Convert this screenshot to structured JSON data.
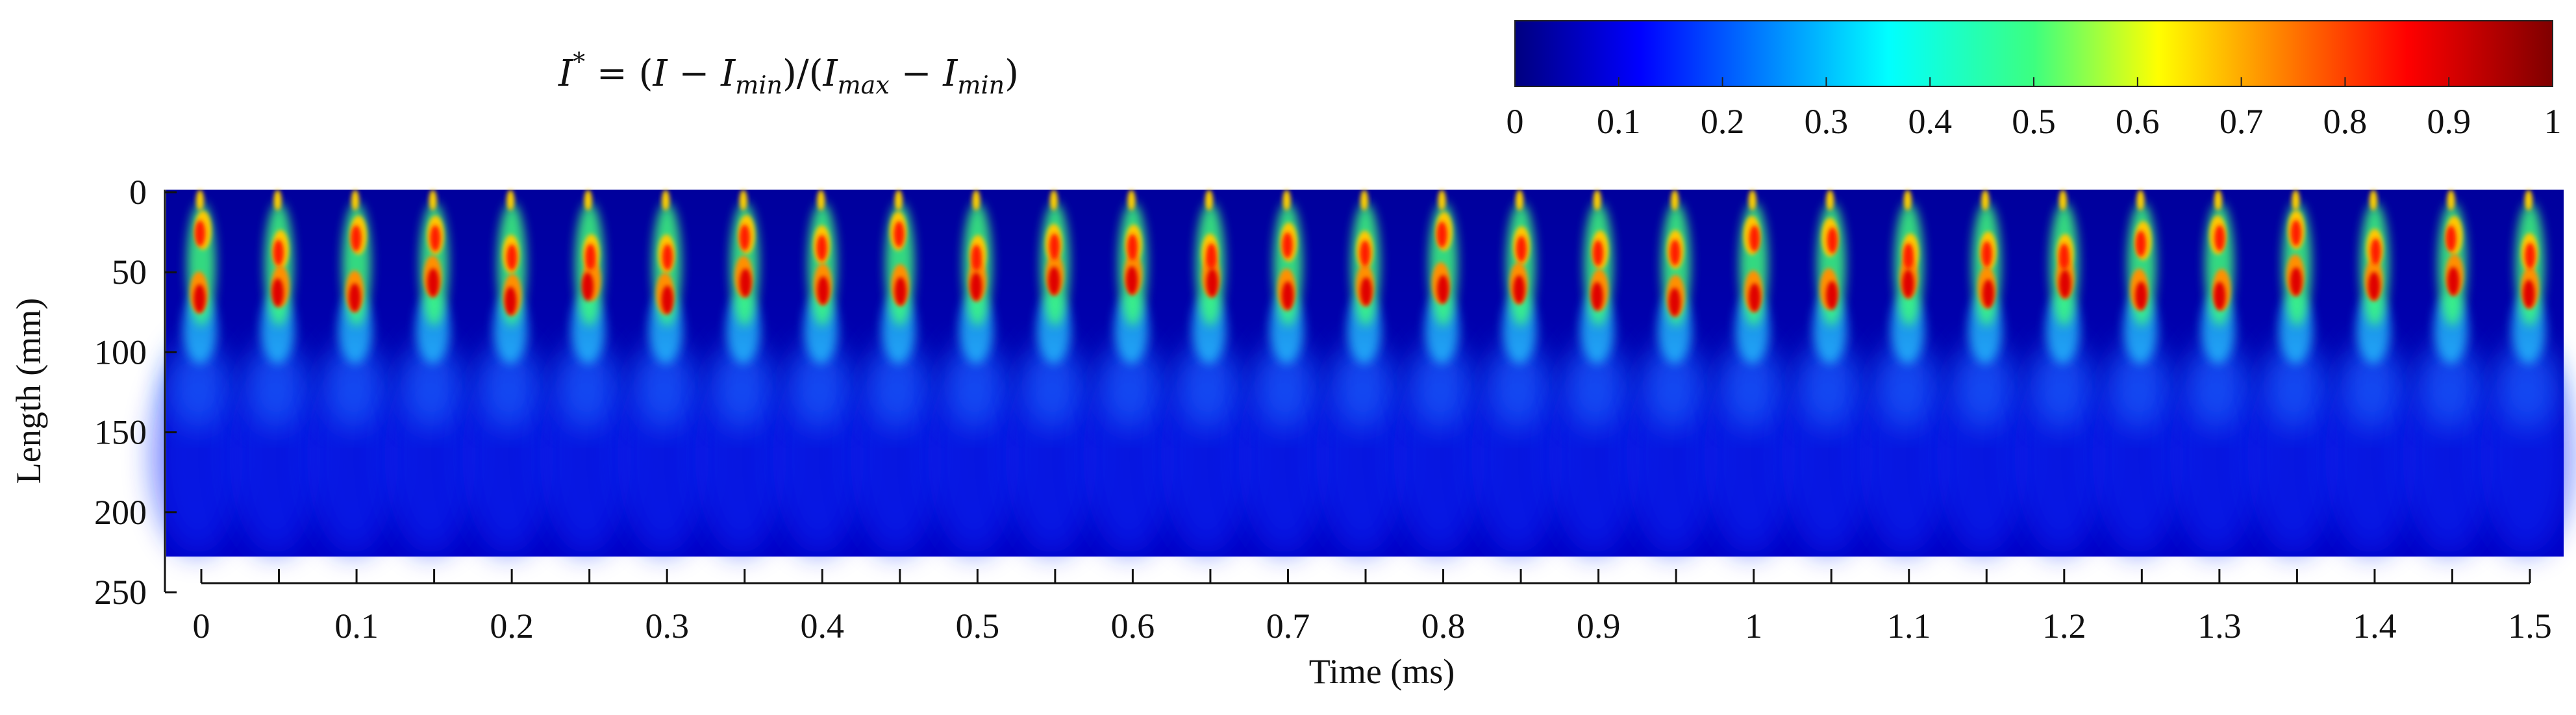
{
  "chart_data": {
    "type": "heatmap",
    "title": "I* = (I − I_min)/(I_max − I_min)",
    "formula": {
      "lhs": "I",
      "lhs_sup": "*",
      "eq": " = (",
      "i1": "I",
      "minus1": " − ",
      "imin1": "I",
      "min_sub": "min",
      "mid": ")/(",
      "imax": "I",
      "max_sub": "max",
      "minus2": " − ",
      "imin2": "I",
      "min_sub2": "min",
      "close": ")"
    },
    "colorbar": {
      "colormap": "jet",
      "range": [
        0,
        1
      ],
      "ticks": [
        0,
        0.1,
        0.2,
        0.3,
        0.4,
        0.5,
        0.6,
        0.7,
        0.8,
        0.9,
        1
      ],
      "tick_labels": [
        "0",
        "0.1",
        "0.2",
        "0.3",
        "0.4",
        "0.5",
        "0.6",
        "0.7",
        "0.8",
        "0.9",
        "1"
      ]
    },
    "ylabel": "Length (mm)",
    "y_ticks": [
      0,
      50,
      100,
      150,
      200,
      250
    ],
    "y_tick_labels": [
      "0",
      "50",
      "100",
      "150",
      "200",
      "250"
    ],
    "ylim": [
      0,
      250
    ],
    "image_extent_y": [
      0,
      228
    ],
    "xlabel": "Time (ms)",
    "x_frames": [
      0,
      0.05,
      0.1,
      0.15,
      0.2,
      0.25,
      0.3,
      0.35,
      0.4,
      0.45,
      0.5,
      0.55,
      0.6,
      0.65,
      0.7,
      0.75,
      0.8,
      0.85,
      0.9,
      0.95,
      1.0,
      1.05,
      1.1,
      1.15,
      1.2,
      1.25,
      1.3,
      1.35,
      1.4,
      1.45,
      1.5
    ],
    "x_tick_labels": [
      "0",
      "0.1",
      "0.2",
      "0.3",
      "0.4",
      "0.5",
      "0.6",
      "0.7",
      "0.8",
      "0.9",
      "1",
      "1.1",
      "1.2",
      "1.3",
      "1.4",
      "1.5"
    ],
    "xlim": [
      0,
      1.5
    ]
  }
}
